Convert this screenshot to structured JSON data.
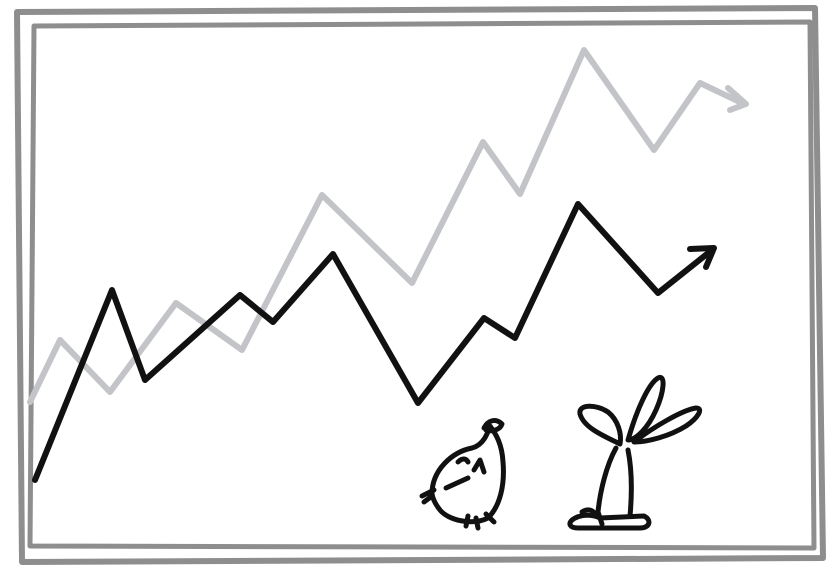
{
  "illustration": {
    "style": "hand-drawn sketch",
    "colors": {
      "frame": "#8e8e8e",
      "primary_line": "#111111",
      "secondary_line": "#c2c4c8",
      "background": "#ffffff"
    },
    "series": [
      {
        "key": "upper",
        "trend": "up",
        "color": "#c2c4c8"
      },
      {
        "key": "lower",
        "trend": "up",
        "color": "#111111"
      }
    ],
    "characters": [
      "chick",
      "rabbit"
    ]
  }
}
